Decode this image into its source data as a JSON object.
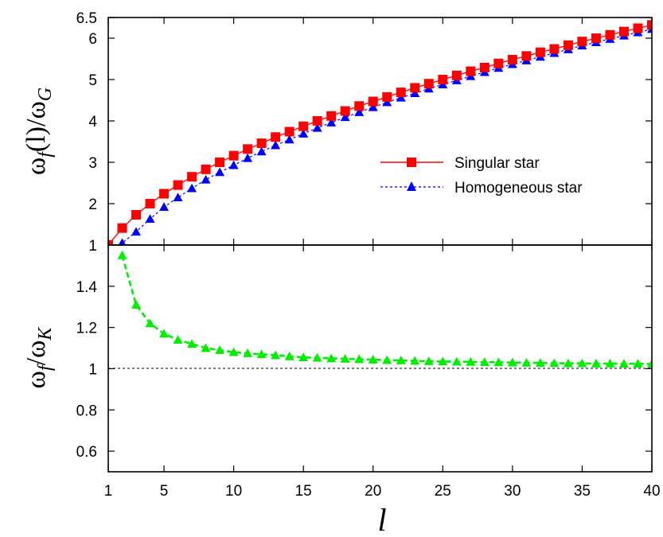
{
  "chart_data": [
    {
      "type": "line",
      "panel": "top",
      "ylabel": "ω_f(l)/ω_G",
      "xlim": [
        1,
        40
      ],
      "ylim": [
        1,
        6.5
      ],
      "yticks": [
        "1",
        "2",
        "3",
        "4",
        "5",
        "6",
        "6.5"
      ],
      "legend_position": "center-right",
      "series": [
        {
          "name": "Singular star",
          "color": "#ff0000",
          "marker": "square",
          "line": "solid",
          "x": [
            1,
            2,
            3,
            4,
            5,
            6,
            7,
            8,
            9,
            10,
            11,
            12,
            13,
            14,
            15,
            16,
            17,
            18,
            19,
            20,
            21,
            22,
            23,
            24,
            25,
            26,
            27,
            28,
            29,
            30,
            31,
            32,
            33,
            34,
            35,
            36,
            37,
            38,
            39,
            40
          ],
          "values": [
            1.0,
            1.41,
            1.73,
            2.0,
            2.24,
            2.45,
            2.65,
            2.83,
            3.0,
            3.16,
            3.32,
            3.46,
            3.61,
            3.74,
            3.87,
            4.0,
            4.12,
            4.24,
            4.36,
            4.47,
            4.58,
            4.69,
            4.8,
            4.9,
            5.0,
            5.1,
            5.2,
            5.29,
            5.39,
            5.48,
            5.57,
            5.66,
            5.74,
            5.83,
            5.92,
            6.0,
            6.08,
            6.16,
            6.24,
            6.32
          ]
        },
        {
          "name": "Homogeneous star",
          "color": "#0000ff",
          "marker": "triangle",
          "line": "dotted",
          "x": [
            1,
            2,
            3,
            4,
            5,
            6,
            7,
            8,
            9,
            10,
            11,
            12,
            13,
            14,
            15,
            16,
            17,
            18,
            19,
            20,
            21,
            22,
            23,
            24,
            25,
            26,
            27,
            28,
            29,
            30,
            31,
            32,
            33,
            34,
            35,
            36,
            37,
            38,
            39,
            40
          ],
          "values": [
            0.8,
            1.05,
            1.32,
            1.63,
            1.92,
            2.15,
            2.37,
            2.58,
            2.76,
            2.93,
            3.1,
            3.26,
            3.41,
            3.55,
            3.69,
            3.83,
            3.96,
            4.09,
            4.21,
            4.33,
            4.45,
            4.56,
            4.67,
            4.78,
            4.88,
            4.98,
            5.08,
            5.18,
            5.28,
            5.37,
            5.46,
            5.55,
            5.64,
            5.73,
            5.82,
            5.9,
            5.98,
            6.06,
            6.14,
            6.22
          ]
        }
      ]
    },
    {
      "type": "line",
      "panel": "bottom",
      "xlabel": "l",
      "ylabel": "ω_f/ω_K",
      "xlim": [
        1,
        40
      ],
      "ylim": [
        0.5,
        1.6
      ],
      "xticks": [
        "1",
        "5",
        "10",
        "15",
        "20",
        "25",
        "30",
        "35",
        "40"
      ],
      "yticks": [
        "0.6",
        "0.8",
        "1",
        "1.2",
        "1.4"
      ],
      "reference_line": 1,
      "series": [
        {
          "color": "#00ee00",
          "marker": "triangle",
          "line": "dashed",
          "x": [
            2,
            3,
            4,
            5,
            6,
            7,
            8,
            9,
            10,
            11,
            12,
            13,
            14,
            15,
            16,
            17,
            18,
            19,
            20,
            21,
            22,
            23,
            24,
            25,
            26,
            27,
            28,
            29,
            30,
            31,
            32,
            33,
            34,
            35,
            36,
            37,
            38,
            39,
            40
          ],
          "values": [
            1.55,
            1.31,
            1.22,
            1.17,
            1.14,
            1.12,
            1.1,
            1.09,
            1.08,
            1.075,
            1.07,
            1.065,
            1.06,
            1.055,
            1.053,
            1.05,
            1.048,
            1.046,
            1.044,
            1.042,
            1.04,
            1.038,
            1.036,
            1.035,
            1.034,
            1.033,
            1.032,
            1.031,
            1.03,
            1.029,
            1.028,
            1.027,
            1.026,
            1.026,
            1.025,
            1.025,
            1.024,
            1.024,
            1.023
          ]
        }
      ]
    }
  ]
}
